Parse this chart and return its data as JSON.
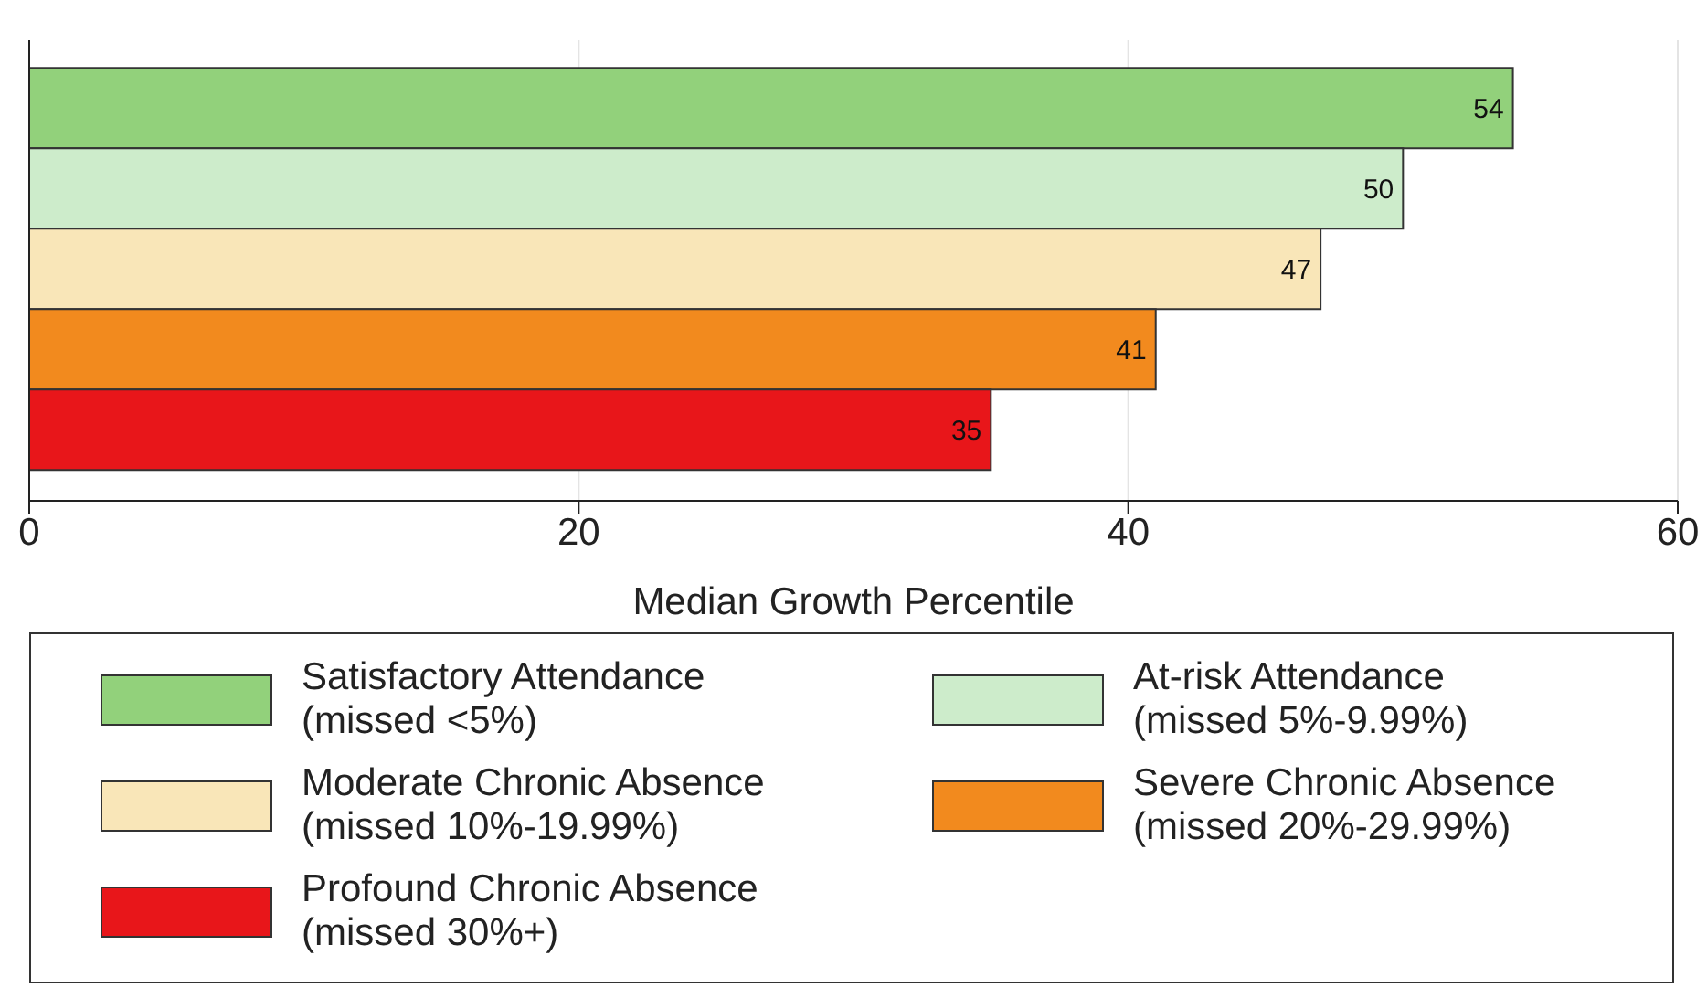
{
  "chart_data": {
    "type": "bar",
    "orientation": "horizontal",
    "xlabel": "Median Growth Percentile",
    "categories": [
      null
    ],
    "series": [
      {
        "name": "Satisfactory Attendance (missed <5%)",
        "color": "#92d17b",
        "values": [
          54
        ]
      },
      {
        "name": "At-risk Attendance (missed 5%-9.99%)",
        "color": "#cdeccb",
        "values": [
          50
        ]
      },
      {
        "name": "Moderate Chronic Absence (missed 10%-19.99%)",
        "color": "#f9e6b8",
        "values": [
          47
        ]
      },
      {
        "name": "Severe Chronic Absence (missed 20%-29.99%)",
        "color": "#f28a1e",
        "values": [
          41
        ]
      },
      {
        "name": "Profound Chronic Absence (missed 30%+)",
        "color": "#e8161a",
        "values": [
          35
        ]
      }
    ],
    "xlim": [
      0,
      60
    ],
    "xticks": [
      0,
      20,
      40,
      60
    ],
    "grid": "x",
    "data_labels": true,
    "legend": "bottom"
  }
}
